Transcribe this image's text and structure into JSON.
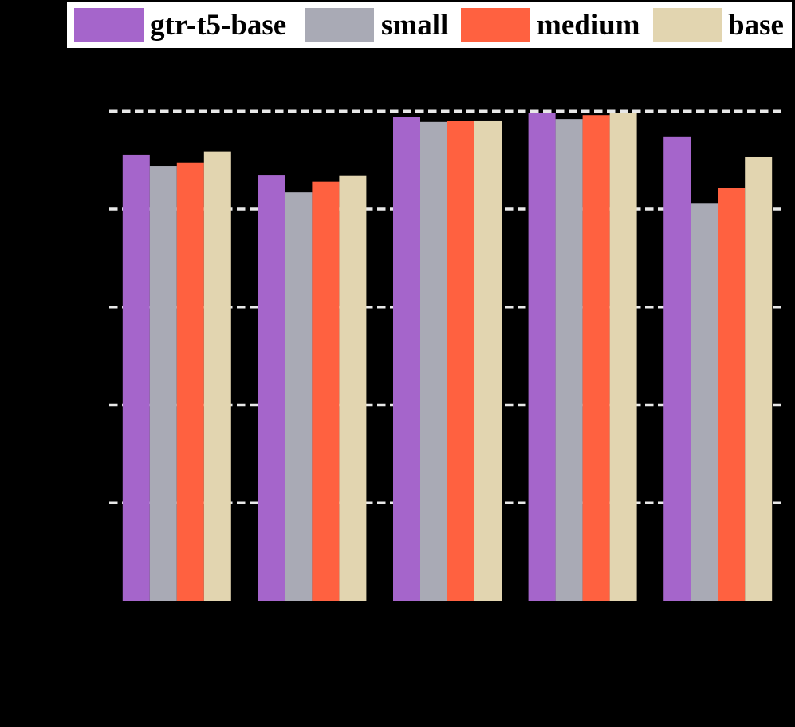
{
  "page": {
    "background": "#000000"
  },
  "legend": {
    "background": "#FFFFFF",
    "position": "top",
    "items": [
      {
        "label": "gtr-t5-base",
        "color": "#A565CB",
        "swatch_icon": "purple-square-swatch"
      },
      {
        "label": "small",
        "color": "#A9AAB5",
        "swatch_icon": "gray-square-swatch"
      },
      {
        "label": "medium",
        "color": "#FF6140",
        "swatch_icon": "orange-square-swatch"
      },
      {
        "label": "base",
        "color": "#E2D5B0",
        "swatch_icon": "tan-square-swatch"
      }
    ]
  },
  "chart_data": {
    "type": "bar",
    "title": "",
    "xlabel": "",
    "ylabel": "",
    "categories": [
      "",
      "",
      "",
      "",
      ""
    ],
    "categories_note": "5 bar groups; x-axis tick labels are not visible in the image (black text on black background)",
    "value_note": "y-axis tick labels are not visible; values are normalized bar heights where 1.0 = top gridline and 0 = baseline",
    "series": [
      {
        "name": "gtr-t5-base",
        "color": "#A565CB",
        "values": [
          0.911,
          0.87,
          0.989,
          0.996,
          0.947
        ]
      },
      {
        "name": "small",
        "color": "#A9AAB5",
        "values": [
          0.888,
          0.834,
          0.978,
          0.984,
          0.811
        ]
      },
      {
        "name": "medium",
        "color": "#FF6140",
        "values": [
          0.895,
          0.856,
          0.98,
          0.992,
          0.844
        ]
      },
      {
        "name": "base",
        "color": "#E2D5B0",
        "values": [
          0.918,
          0.869,
          0.981,
          0.996,
          0.906
        ]
      }
    ],
    "gridline_values": [
      0.2,
      0.4,
      0.6,
      0.8,
      1.0
    ],
    "grid_style": "horizontal dashed",
    "grid_color": "#E8E8E8",
    "background": "#000000",
    "legend_position": "top",
    "ylim_normalized": [
      0,
      1.07
    ]
  }
}
